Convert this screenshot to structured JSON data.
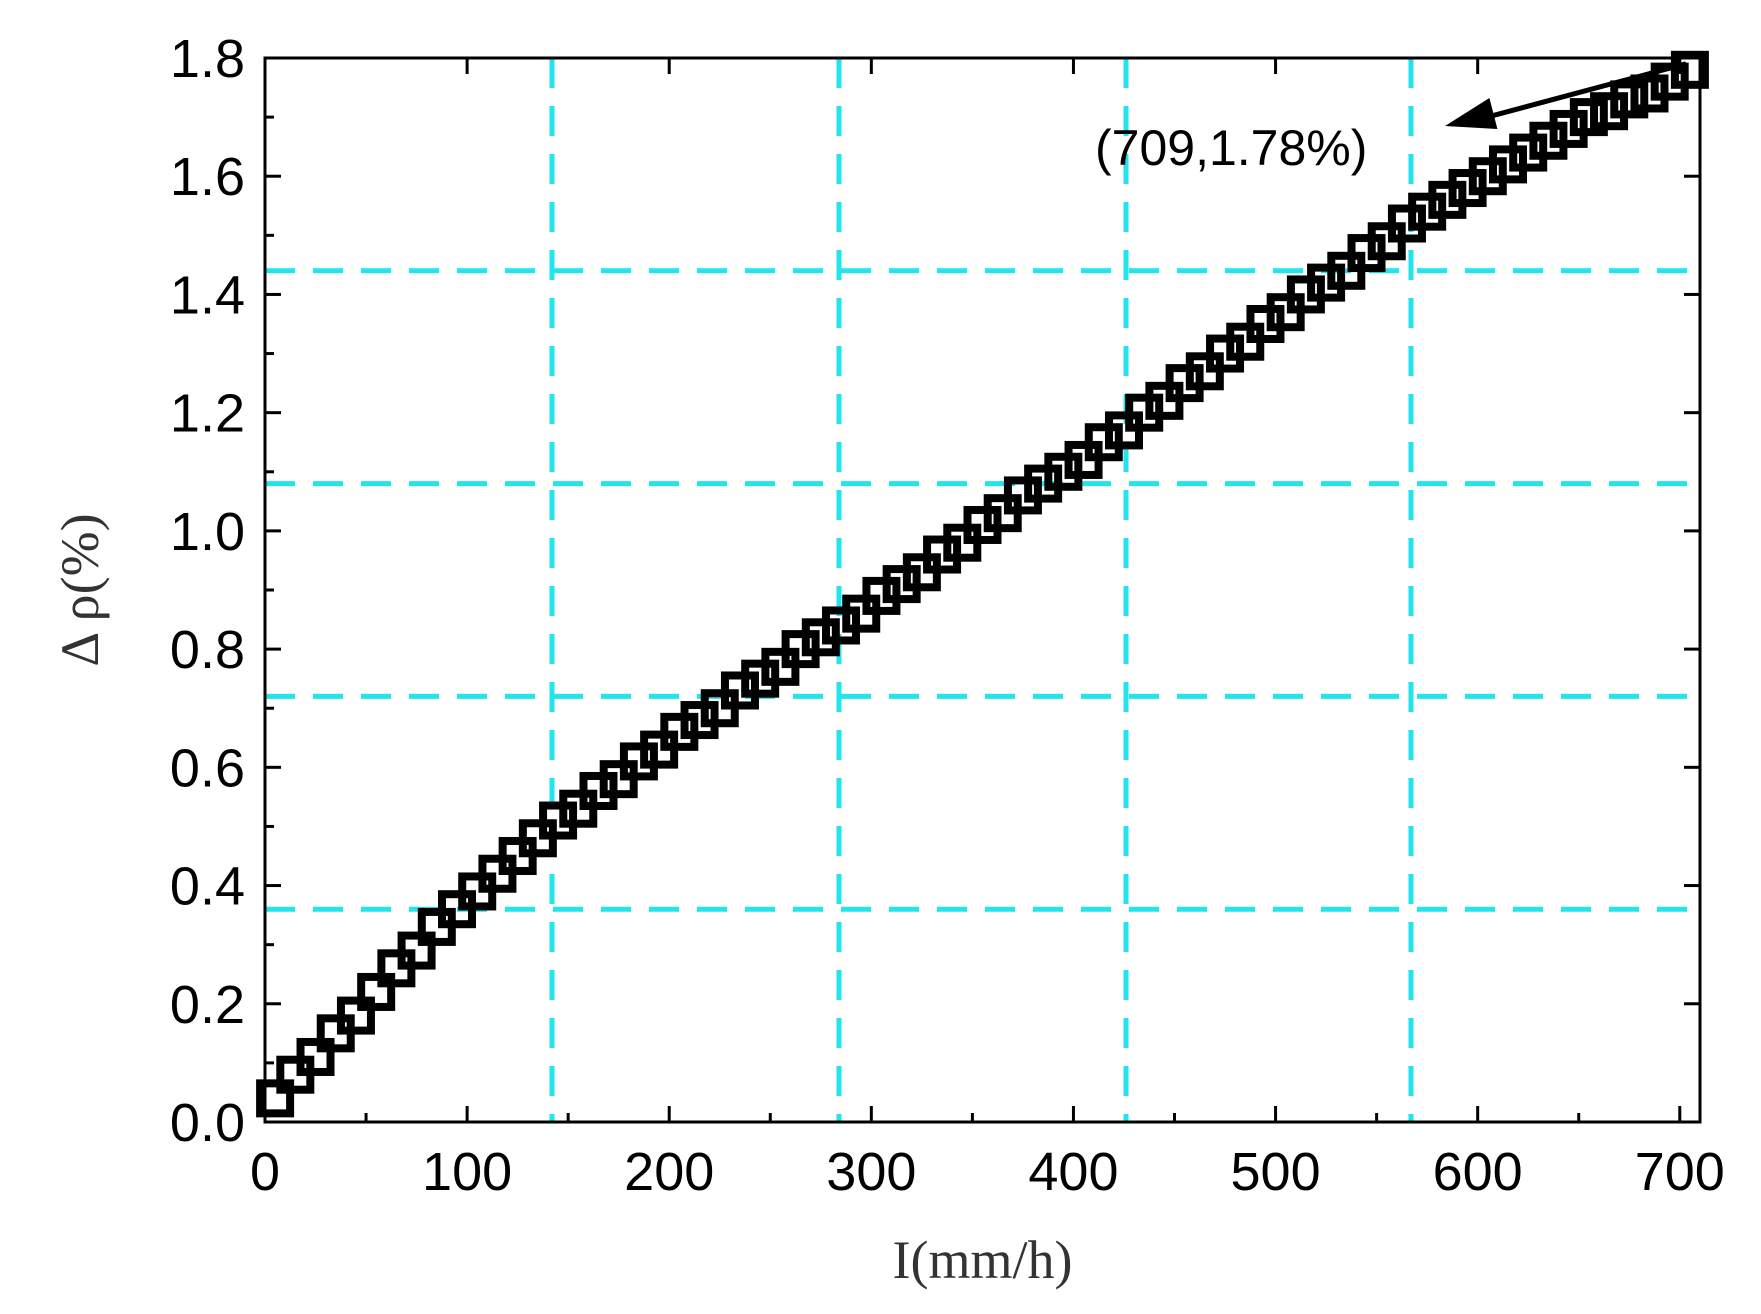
{
  "chart_data": {
    "type": "scatter",
    "xlabel": "I(mm/h)",
    "ylabel": "Δ ρ(%)",
    "xlim": [
      0,
      710
    ],
    "ylim": [
      0,
      1.8
    ],
    "x_ticks": [
      "0",
      "100",
      "200",
      "300",
      "400",
      "500",
      "600",
      "700"
    ],
    "y_ticks": [
      "0.0",
      "0.2",
      "0.4",
      "0.6",
      "0.8",
      "1.0",
      "1.2",
      "1.4",
      "1.6",
      "1.8"
    ],
    "x_tick_values": [
      0,
      100,
      200,
      300,
      400,
      500,
      600,
      700
    ],
    "y_tick_values": [
      0,
      0.2,
      0.4,
      0.6,
      0.8,
      1.0,
      1.2,
      1.4,
      1.6,
      1.8
    ],
    "series": [
      {
        "marker": "open-square",
        "x": [
          5,
          15,
          25,
          35,
          45,
          55,
          65,
          75,
          85,
          95,
          105,
          115,
          125,
          135,
          145,
          155,
          165,
          175,
          185,
          195,
          205,
          215,
          225,
          235,
          245,
          255,
          265,
          275,
          285,
          295,
          305,
          315,
          325,
          335,
          345,
          355,
          365,
          375,
          385,
          395,
          405,
          415,
          425,
          435,
          445,
          455,
          465,
          475,
          485,
          495,
          505,
          515,
          525,
          535,
          545,
          555,
          565,
          575,
          585,
          595,
          605,
          615,
          625,
          635,
          645,
          655,
          665,
          675,
          685,
          695,
          705
        ],
        "y": [
          0.04,
          0.08,
          0.11,
          0.15,
          0.18,
          0.22,
          0.26,
          0.29,
          0.33,
          0.36,
          0.39,
          0.42,
          0.45,
          0.48,
          0.51,
          0.53,
          0.56,
          0.58,
          0.61,
          0.63,
          0.66,
          0.68,
          0.7,
          0.73,
          0.75,
          0.77,
          0.8,
          0.82,
          0.84,
          0.86,
          0.89,
          0.91,
          0.93,
          0.96,
          0.98,
          1.01,
          1.03,
          1.06,
          1.08,
          1.1,
          1.12,
          1.15,
          1.17,
          1.2,
          1.22,
          1.25,
          1.27,
          1.3,
          1.32,
          1.35,
          1.37,
          1.4,
          1.42,
          1.44,
          1.47,
          1.49,
          1.52,
          1.54,
          1.56,
          1.58,
          1.6,
          1.62,
          1.64,
          1.66,
          1.68,
          1.7,
          1.71,
          1.73,
          1.74,
          1.76,
          1.78
        ]
      }
    ],
    "reference_lines": {
      "color": "#22e4ec",
      "style": "dashed",
      "x": [
        142,
        284,
        426,
        567
      ],
      "y": [
        0.36,
        0.72,
        1.08,
        1.44
      ]
    },
    "annotation": {
      "text": "(709,1.78%)",
      "points_to": [
        709,
        1.78
      ]
    }
  }
}
